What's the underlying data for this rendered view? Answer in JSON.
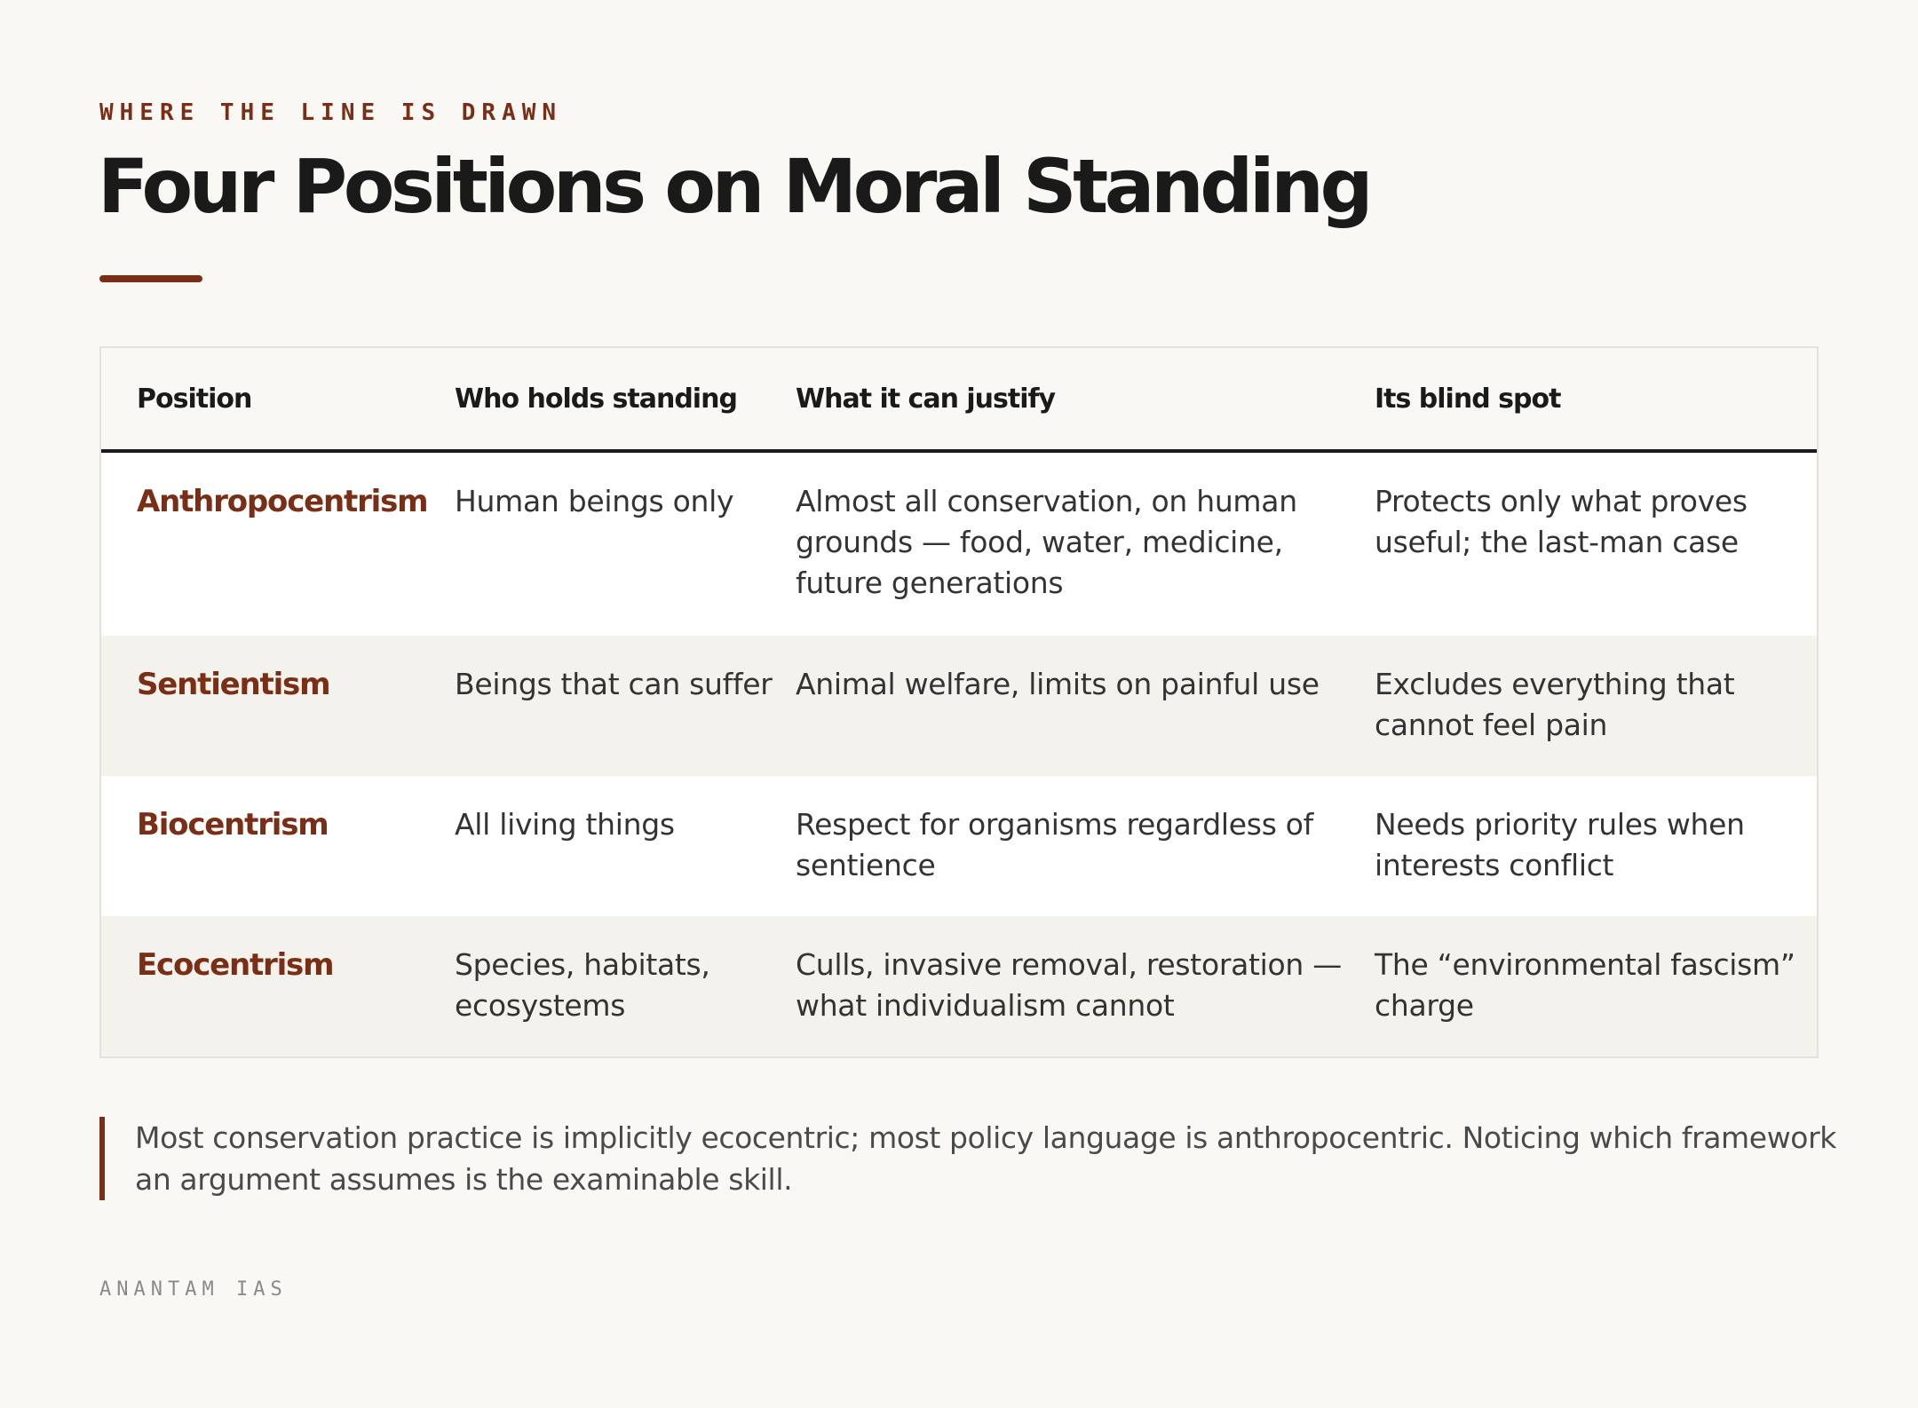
{
  "eyebrow": "WHERE THE LINE IS DRAWN",
  "title": "Four Positions on Moral Standing",
  "colors": {
    "accent": "#7a2e16",
    "background": "#f9f8f4",
    "row_alt": "#f4f2ec",
    "text": "#1a1a1a"
  },
  "table": {
    "headers": [
      "Position",
      "Who holds standing",
      "What it can justify",
      "Its blind spot"
    ],
    "rows": [
      {
        "position": "Anthropocentrism",
        "who": "Human beings only",
        "justify": "Almost all conservation, on human grounds — food, water, medicine, future generations",
        "blind_spot": "Protects only what proves useful; the last-man case"
      },
      {
        "position": "Sentientism",
        "who": "Beings that can suffer",
        "justify": "Animal welfare, limits on painful use",
        "blind_spot": "Excludes everything that cannot feel pain"
      },
      {
        "position": "Biocentrism",
        "who": "All living things",
        "justify": "Respect for organisms regardless of sentience",
        "blind_spot": "Needs priority rules when interests conflict"
      },
      {
        "position": "Ecocentrism",
        "who": "Species, habitats, ecosystems",
        "justify": "Culls, invasive removal, restoration — what individualism cannot",
        "blind_spot": "The “environmental fascism” charge"
      }
    ]
  },
  "note": "Most conservation practice is implicitly ecocentric; most policy language is anthropocentric. Noticing which framework an argument assumes is the examinable skill.",
  "footer": "ANANTAM IAS"
}
